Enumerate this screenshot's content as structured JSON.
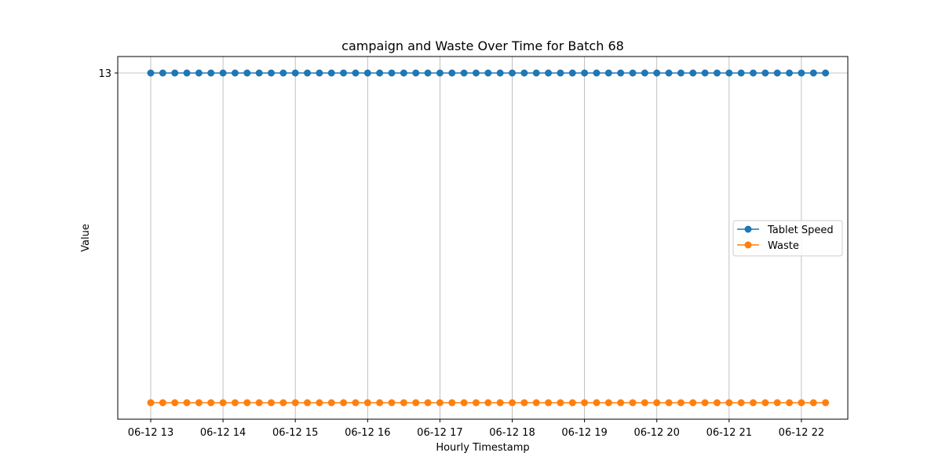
{
  "chart_data": {
    "type": "line",
    "title": "campaign and Waste Over Time for Batch 68",
    "xlabel": "Hourly Timestamp",
    "ylabel": "Value",
    "x_start": "06-12 13:00",
    "x_step_minutes": 10,
    "x_count": 57,
    "x_tick_labels": [
      "06-12 13",
      "06-12 14",
      "06-12 15",
      "06-12 16",
      "06-12 17",
      "06-12 18",
      "06-12 19",
      "06-12 20",
      "06-12 21",
      "06-12 22"
    ],
    "y_tick_labels": [
      "13"
    ],
    "grid": true,
    "legend_position": "center-right",
    "series": [
      {
        "name": "Tablet Speed",
        "color": "#1f77b4",
        "constant_value": 13
      },
      {
        "name": "Waste",
        "color": "#ff7f0e",
        "constant_value": 0
      }
    ]
  }
}
